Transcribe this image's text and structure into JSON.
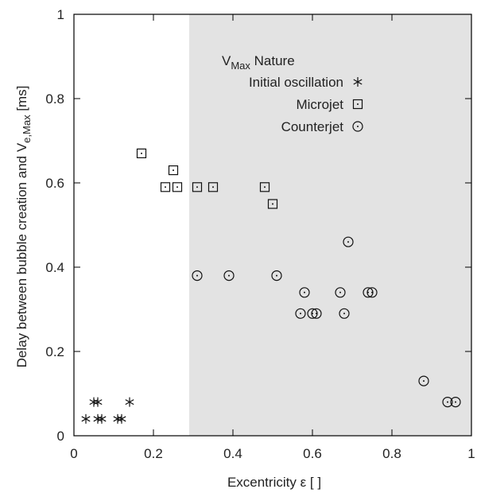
{
  "chart_data": {
    "type": "scatter",
    "xlabel": "Excentricity ε [ ]",
    "ylabel": "Delay between bubble creation and V",
    "ylabel_sub": "e,Max",
    "ylabel_unit": " [ms]",
    "xlim": [
      0,
      1
    ],
    "ylim": [
      0,
      1
    ],
    "xticks": [
      0,
      0.2,
      0.4,
      0.6,
      0.8,
      1
    ],
    "xtick_labels": [
      "0",
      "0.2",
      "0.4",
      "0.6",
      "0.8",
      "1"
    ],
    "yticks": [
      0,
      0.2,
      0.4,
      0.6,
      0.8,
      1
    ],
    "ytick_labels": [
      "0",
      "0.2",
      "0.4",
      "0.6",
      "0.8",
      "1"
    ],
    "grid": false,
    "shaded_region": {
      "x_from": 0.29,
      "x_to": 1,
      "color": "#e3e3e3"
    },
    "legend": {
      "title": "V",
      "title_sub": "Max",
      "title_rest": " Nature",
      "placement": "top-center"
    },
    "series": [
      {
        "name": "Initial oscillation",
        "marker": "asterisk",
        "points": [
          [
            0.03,
            0.04
          ],
          [
            0.05,
            0.08
          ],
          [
            0.06,
            0.08
          ],
          [
            0.06,
            0.04
          ],
          [
            0.07,
            0.04
          ],
          [
            0.11,
            0.04
          ],
          [
            0.12,
            0.04
          ],
          [
            0.14,
            0.08
          ]
        ]
      },
      {
        "name": "Microjet",
        "marker": "square",
        "points": [
          [
            0.17,
            0.67
          ],
          [
            0.23,
            0.59
          ],
          [
            0.25,
            0.63
          ],
          [
            0.26,
            0.59
          ],
          [
            0.31,
            0.59
          ],
          [
            0.35,
            0.59
          ],
          [
            0.48,
            0.59
          ],
          [
            0.5,
            0.55
          ]
        ]
      },
      {
        "name": "Counterjet",
        "marker": "circle",
        "points": [
          [
            0.31,
            0.38
          ],
          [
            0.39,
            0.38
          ],
          [
            0.51,
            0.38
          ],
          [
            0.57,
            0.29
          ],
          [
            0.58,
            0.34
          ],
          [
            0.6,
            0.29
          ],
          [
            0.61,
            0.29
          ],
          [
            0.67,
            0.34
          ],
          [
            0.68,
            0.29
          ],
          [
            0.69,
            0.46
          ],
          [
            0.74,
            0.34
          ],
          [
            0.75,
            0.34
          ],
          [
            0.88,
            0.13
          ],
          [
            0.94,
            0.08
          ],
          [
            0.96,
            0.08
          ]
        ]
      }
    ]
  }
}
